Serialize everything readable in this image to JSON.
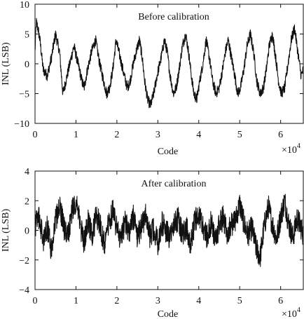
{
  "chart_data": [
    {
      "type": "line",
      "annotation": "Before calibration",
      "xlabel": "Code",
      "ylabel": "INL (LSB)",
      "x_multiplier": "×10",
      "x_multiplier_exponent": "4",
      "xlim": [
        0,
        65536
      ],
      "ylim": [
        -10,
        10
      ],
      "x_ticks": [
        0,
        10000,
        20000,
        30000,
        40000,
        50000,
        60000
      ],
      "x_tick_labels": [
        "0",
        "1",
        "2",
        "3",
        "4",
        "5",
        "6"
      ],
      "y_ticks": [
        -10,
        -5,
        0,
        5,
        10
      ],
      "y_tick_labels": [
        "−10",
        "−5",
        "0",
        "5",
        "10"
      ],
      "grid": false,
      "series": [
        {
          "x": [
            0,
            300,
            700,
            1200,
            2000,
            3000,
            4000,
            5000,
            6000,
            6800,
            7500,
            8500,
            9500,
            10500,
            11500,
            12000,
            12800,
            13800,
            14800,
            15800,
            16800,
            17500,
            18200,
            19000,
            19800,
            20800,
            21800,
            22500,
            23200,
            24000,
            24700,
            25500,
            26200,
            26800,
            27500,
            28200,
            29000,
            29800,
            30800,
            31600,
            32300,
            33000,
            33800,
            34500,
            35200,
            36000,
            36800,
            37500,
            38200,
            38800,
            39500,
            40200,
            41000,
            41800,
            42600,
            43400,
            44200,
            45000,
            45800,
            46500,
            47200,
            48000,
            48800,
            49500,
            50200,
            51000,
            51800,
            52600,
            53400,
            54200,
            55000,
            55800,
            56500,
            57200,
            58000,
            58800,
            59500,
            60200,
            61000,
            61800,
            62600,
            63400,
            64200,
            65000,
            65536
          ],
          "y": [
            2,
            7,
            6,
            4,
            -1,
            -2,
            1,
            5,
            2,
            -5,
            -3,
            0,
            3,
            0,
            -3,
            -4,
            -1,
            2,
            4,
            0,
            -3,
            -5,
            -4,
            -1,
            4,
            1,
            -2,
            -4,
            -3,
            0,
            2,
            4,
            1,
            -3,
            -6,
            -7,
            -5,
            -2,
            1,
            4,
            2,
            -2,
            -5,
            -4,
            -1,
            3,
            5,
            2,
            -2,
            -5,
            -6,
            -3,
            0,
            4,
            1,
            -3,
            -5,
            -4,
            -1,
            2,
            4,
            1,
            -2,
            -5,
            -4,
            -1,
            3,
            5,
            2,
            -3,
            -5,
            -4,
            -1,
            3,
            5,
            1,
            -3,
            -5,
            -4,
            0,
            4,
            6,
            2,
            -2,
            -1
          ]
        }
      ]
    },
    {
      "type": "line",
      "annotation": "After calibration",
      "xlabel": "Code",
      "ylabel": "INL (LSB)",
      "x_multiplier": "×10",
      "x_multiplier_exponent": "4",
      "xlim": [
        0,
        65536
      ],
      "ylim": [
        -4,
        4
      ],
      "x_ticks": [
        0,
        10000,
        20000,
        30000,
        40000,
        50000,
        60000
      ],
      "x_tick_labels": [
        "0",
        "1",
        "2",
        "3",
        "4",
        "5",
        "6"
      ],
      "y_ticks": [
        -4,
        -2,
        0,
        2,
        4
      ],
      "y_tick_labels": [
        "−4",
        "−2",
        "0",
        "2",
        "4"
      ],
      "grid": false,
      "series": [
        {
          "x": [
            0,
            1000,
            2000,
            3000,
            4000,
            5000,
            6000,
            7000,
            8000,
            9000,
            10000,
            11000,
            12000,
            13000,
            14000,
            15000,
            16000,
            17000,
            18000,
            19000,
            20000,
            21000,
            22000,
            23000,
            24000,
            25000,
            26000,
            27000,
            28000,
            29000,
            30000,
            31000,
            32000,
            33000,
            34000,
            35000,
            36000,
            37000,
            38000,
            39000,
            40000,
            41000,
            42000,
            43000,
            44000,
            45000,
            46000,
            47000,
            48000,
            49000,
            50000,
            51000,
            52000,
            53000,
            54000,
            55000,
            56000,
            57000,
            58000,
            59000,
            60000,
            61000,
            62000,
            63000,
            64000,
            65000,
            65536
          ],
          "y": [
            0.4,
            0.8,
            -0.6,
            0.2,
            -1.4,
            0.6,
            1.8,
            0.2,
            -0.5,
            1.2,
            2.0,
            0.4,
            -0.8,
            0.6,
            -0.3,
            1.1,
            0.2,
            -1.0,
            0.5,
            1.3,
            0.0,
            -0.7,
            0.6,
            -0.2,
            0.9,
            -0.5,
            0.3,
            1.0,
            -0.4,
            0.2,
            -0.9,
            0.5,
            0.0,
            -0.6,
            0.4,
            0.8,
            -0.3,
            0.2,
            -1.1,
            0.6,
            1.2,
            0.1,
            -0.4,
            0.5,
            -0.8,
            0.3,
            0.9,
            -0.2,
            0.4,
            0.7,
            1.8,
            0.5,
            -0.3,
            0.2,
            -1.2,
            -1.8,
            0.3,
            1.6,
            0.4,
            -0.6,
            0.9,
            2.0,
            0.4,
            -0.5,
            0.8,
            0.2,
            -0.3
          ]
        }
      ]
    }
  ]
}
